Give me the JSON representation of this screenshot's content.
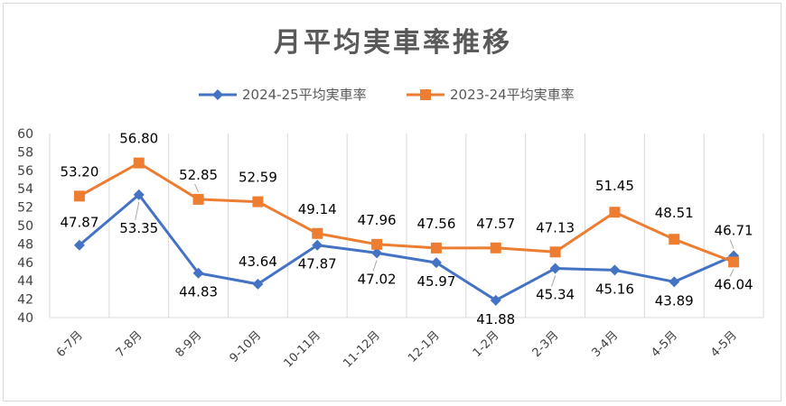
{
  "chart_data": {
    "type": "line",
    "title": "月平均実車率推移",
    "categories": [
      "6-7月",
      "7-8月",
      "8-9月",
      "9-10月",
      "10-11月",
      "11-12月",
      "12-1月",
      "1-2月",
      "2-3月",
      "3-4月",
      "4-5月",
      "4-5月"
    ],
    "ylim": [
      40,
      60
    ],
    "yticks": [
      40,
      42,
      44,
      46,
      48,
      50,
      52,
      54,
      56,
      58,
      60
    ],
    "grid": "vertical",
    "legend": "top",
    "series": [
      {
        "name": "2024-25平均実車率",
        "color": "#4472C4",
        "marker": "diamond",
        "values": [
          47.87,
          53.35,
          44.83,
          43.64,
          47.87,
          47.02,
          45.97,
          41.88,
          45.34,
          45.16,
          43.89,
          46.71
        ],
        "labels": [
          "47.87",
          "53.35",
          "44.83",
          "43.64",
          "47.87",
          "47.02",
          "45.97",
          "41.88",
          "45.34",
          "45.16",
          "43.89",
          "46.71"
        ]
      },
      {
        "name": "2023-24平均実車率",
        "color": "#ED7D31",
        "marker": "square",
        "values": [
          53.2,
          56.8,
          52.85,
          52.59,
          49.14,
          47.96,
          47.56,
          47.57,
          47.13,
          51.45,
          48.51,
          46.04
        ],
        "labels": [
          "53.20",
          "56.80",
          "52.85",
          "52.59",
          "49.14",
          "47.96",
          "47.56",
          "47.57",
          "47.13",
          "51.45",
          "48.51",
          "46.04"
        ]
      }
    ]
  }
}
